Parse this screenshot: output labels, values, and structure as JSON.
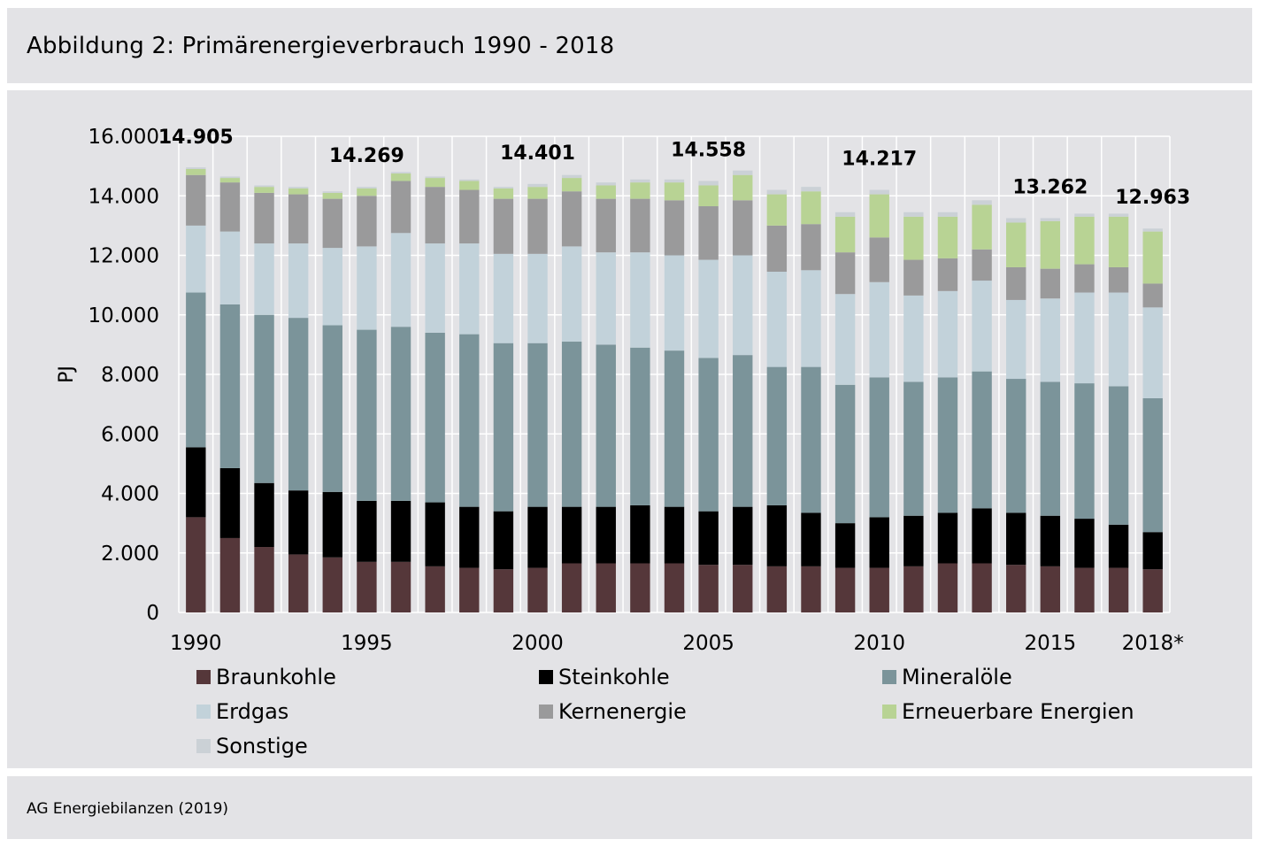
{
  "title": "Abbildung 2: Primärenergieverbrauch 1990 - 2018",
  "source": "AG Energiebilanzen (2019)",
  "colors": {
    "panel_bg": "#e3e3e6",
    "plot_bg": "#e3e3e6",
    "grid": "#ffffff"
  },
  "chart_data": {
    "type": "bar",
    "stacked": true,
    "ylabel": "PJ",
    "ylim": [
      0,
      16000
    ],
    "yticks": [
      0,
      2000,
      4000,
      6000,
      8000,
      10000,
      12000,
      14000,
      16000
    ],
    "ytick_labels": [
      "0",
      "2.000",
      "4.000",
      "6.000",
      "8.000",
      "10.000",
      "12.000",
      "14.000",
      "16.000"
    ],
    "grid": true,
    "categories": [
      "1990",
      "1991",
      "1992",
      "1993",
      "1994",
      "1995",
      "1996",
      "1997",
      "1998",
      "1999",
      "2000",
      "2001",
      "2002",
      "2003",
      "2004",
      "2005",
      "2006",
      "2007",
      "2008",
      "2009",
      "2010",
      "2011",
      "2012",
      "2013",
      "2014",
      "2015",
      "2016",
      "2017",
      "2018*"
    ],
    "xtick_labels": [
      {
        "index": 0,
        "label": "1990"
      },
      {
        "index": 5,
        "label": "1995"
      },
      {
        "index": 10,
        "label": "2000"
      },
      {
        "index": 15,
        "label": "2005"
      },
      {
        "index": 20,
        "label": "2010"
      },
      {
        "index": 25,
        "label": "2015"
      },
      {
        "index": 28,
        "label": "2018*"
      }
    ],
    "series": [
      {
        "name": "Braunkohle",
        "color": "#55373a",
        "values": [
          3200,
          2500,
          2200,
          1950,
          1850,
          1700,
          1700,
          1550,
          1500,
          1450,
          1500,
          1650,
          1650,
          1650,
          1650,
          1600,
          1600,
          1550,
          1550,
          1500,
          1500,
          1550,
          1650,
          1650,
          1600,
          1550,
          1500,
          1500,
          1450
        ]
      },
      {
        "name": "Steinkohle",
        "color": "#000000",
        "values": [
          2350,
          2350,
          2150,
          2150,
          2200,
          2050,
          2050,
          2150,
          2050,
          1950,
          2050,
          1900,
          1900,
          1950,
          1900,
          1800,
          1950,
          2050,
          1800,
          1500,
          1700,
          1700,
          1700,
          1850,
          1750,
          1700,
          1650,
          1450,
          1250
        ]
      },
      {
        "name": "Mineralöle",
        "color": "#7b949a",
        "values": [
          5200,
          5500,
          5650,
          5800,
          5600,
          5750,
          5850,
          5700,
          5800,
          5650,
          5500,
          5550,
          5450,
          5300,
          5250,
          5150,
          5100,
          4650,
          4900,
          4650,
          4700,
          4500,
          4550,
          4600,
          4500,
          4500,
          4550,
          4650,
          4500
        ]
      },
      {
        "name": "Erdgas",
        "color": "#c2d2da",
        "values": [
          2250,
          2450,
          2400,
          2500,
          2600,
          2800,
          3150,
          3000,
          3050,
          3000,
          3000,
          3200,
          3100,
          3200,
          3200,
          3300,
          3350,
          3200,
          3250,
          3050,
          3200,
          2900,
          2900,
          3050,
          2650,
          2800,
          3050,
          3150,
          3050
        ]
      },
      {
        "name": "Kernenergie",
        "color": "#9a9a9b",
        "values": [
          1700,
          1650,
          1700,
          1650,
          1650,
          1700,
          1750,
          1900,
          1800,
          1850,
          1850,
          1850,
          1800,
          1800,
          1850,
          1800,
          1850,
          1550,
          1550,
          1400,
          1500,
          1200,
          1100,
          1050,
          1100,
          1000,
          950,
          850,
          800
        ]
      },
      {
        "name": "Erneuerbare Energien",
        "color": "#b8d394",
        "values": [
          200,
          150,
          200,
          200,
          200,
          250,
          250,
          300,
          300,
          350,
          400,
          450,
          450,
          550,
          600,
          700,
          850,
          1050,
          1100,
          1200,
          1450,
          1450,
          1400,
          1500,
          1500,
          1600,
          1600,
          1700,
          1750
        ]
      },
      {
        "name": "Sonstige",
        "color": "#cbd1d6",
        "values": [
          55,
          50,
          50,
          50,
          50,
          50,
          50,
          50,
          50,
          50,
          100,
          100,
          100,
          100,
          100,
          150,
          150,
          150,
          150,
          150,
          150,
          150,
          150,
          150,
          150,
          100,
          100,
          100,
          100
        ]
      }
    ],
    "data_labels": [
      {
        "index": 0,
        "value": "14.905"
      },
      {
        "index": 5,
        "value": "14.269"
      },
      {
        "index": 10,
        "value": "14.401"
      },
      {
        "index": 15,
        "value": "14.558"
      },
      {
        "index": 20,
        "value": "14.217"
      },
      {
        "index": 25,
        "value": "13.262"
      },
      {
        "index": 28,
        "value": "12.963"
      }
    ],
    "legend": {
      "placement": "bottom",
      "items": [
        "Braunkohle",
        "Steinkohle",
        "Mineralöle",
        "Erdgas",
        "Kernenergie",
        "Erneuerbare Energien",
        "Sonstige"
      ]
    }
  }
}
